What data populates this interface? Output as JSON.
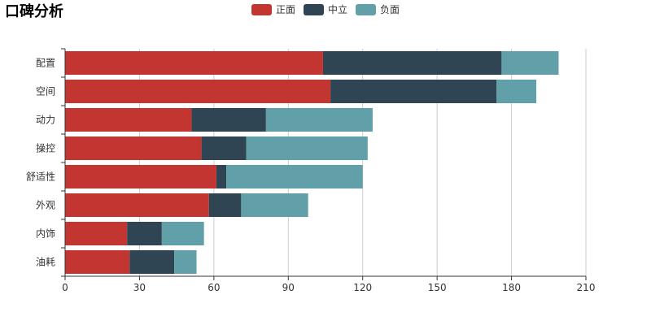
{
  "chart_data": {
    "type": "bar",
    "orientation": "horizontal",
    "stacked": true,
    "title": "口碑分析",
    "categories": [
      "配置",
      "空间",
      "动力",
      "操控",
      "舒适性",
      "外观",
      "内饰",
      "油耗"
    ],
    "series": [
      {
        "name": "正面",
        "color": "#c23531",
        "values": [
          104,
          107,
          51,
          55,
          61,
          58,
          25,
          26
        ]
      },
      {
        "name": "中立",
        "color": "#2f4554",
        "values": [
          72,
          67,
          30,
          18,
          4,
          13,
          14,
          18
        ]
      },
      {
        "name": "负面",
        "color": "#61a0a8",
        "values": [
          23,
          16,
          43,
          49,
          55,
          27,
          17,
          9
        ]
      }
    ],
    "xlim": [
      0,
      210
    ],
    "xticks": [
      0,
      30,
      60,
      90,
      120,
      150,
      180,
      210
    ],
    "grid": true,
    "legend": "top-center"
  }
}
